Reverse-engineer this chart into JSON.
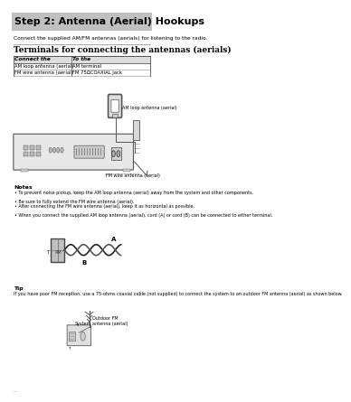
{
  "title": "Step 2: Antenna (Aerial) Hookups",
  "subtitle": "Connect the supplied AM/FM antennas (aerials) for listening to the radio.",
  "section_title": "Terminals for connecting the antennas (aerials)",
  "table_headers": [
    "Connect the",
    "To the"
  ],
  "table_rows": [
    [
      "AM loop antenna (aerial)",
      "AM terminal"
    ],
    [
      "FM wire antenna (aerial)",
      "FM 75ΩCOAXIAL jack"
    ]
  ],
  "notes_title": "Notes",
  "notes": [
    "To prevent noise pickup, keep the AM loop antenna (aerial) away from the system and other components.",
    "Be sure to fully extend the FM wire antenna (aerial).",
    "After connecting the FM wire antenna (aerial), keep it as horizontal as possible.",
    "When you connect the supplied AM loop antenna (aerial), cord (A) or cord (B) can be connected to either terminal."
  ],
  "tip_title": "Tip",
  "tip_text": "If you have poor FM reception, use a 75-ohms coaxial cable (not supplied) to connect the system to an outdoor FM antenna (aerial) as shown below.",
  "bg_color": "#ffffff",
  "header_bg": "#c0c0c0",
  "text_color": "#000000",
  "title_fontsize": 8.0,
  "body_fontsize": 4.2,
  "note_fontsize": 4.0,
  "section_fontsize": 6.5
}
